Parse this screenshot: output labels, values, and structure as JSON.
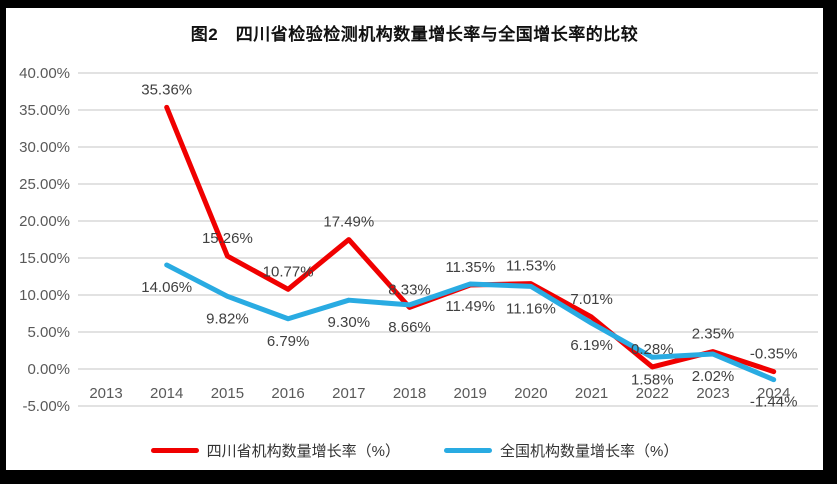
{
  "title": "图2　四川省检验检测机构数量增长率与全国增长率的比较",
  "colors": {
    "sichuan": "#f00000",
    "national": "#29abe2",
    "gridline": "#d9d9d9",
    "axis_text": "#595959",
    "label_text": "#404040",
    "frame": "#000000",
    "background": "#ffffff"
  },
  "chart_data": {
    "type": "line",
    "title": "图2　四川省检验检测机构数量增长率与全国增长率的比较",
    "categories": [
      "2013",
      "2014",
      "2015",
      "2016",
      "2017",
      "2018",
      "2019",
      "2020",
      "2021",
      "2022",
      "2023",
      "2024"
    ],
    "series": [
      {
        "name": "四川省机构数量增长率（%）",
        "color_key": "sichuan",
        "label_position": "above",
        "values": [
          null,
          35.36,
          15.26,
          10.77,
          17.49,
          8.33,
          11.35,
          11.53,
          7.01,
          0.28,
          2.35,
          -0.35
        ]
      },
      {
        "name": "全国机构数量增长率（%）",
        "color_key": "national",
        "label_position": "below",
        "values": [
          null,
          14.06,
          9.82,
          6.79,
          9.3,
          8.66,
          11.49,
          11.16,
          6.19,
          1.58,
          2.02,
          -1.44
        ]
      }
    ],
    "xlabel": "",
    "ylabel": "",
    "ylim": [
      -5,
      40
    ],
    "y_step": 5,
    "y_tick_labels": [
      "40.00%",
      "35.00%",
      "30.00%",
      "25.00%",
      "20.00%",
      "15.00%",
      "10.00%",
      "5.00%",
      "0.00%",
      "-5.00%"
    ],
    "grid": true,
    "data_labels": true,
    "legend_position": "bottom"
  },
  "legend": {
    "items": [
      {
        "label": "四川省机构数量增长率（%）",
        "color_key": "sichuan"
      },
      {
        "label": "全国机构数量增长率（%）",
        "color_key": "national"
      }
    ]
  }
}
